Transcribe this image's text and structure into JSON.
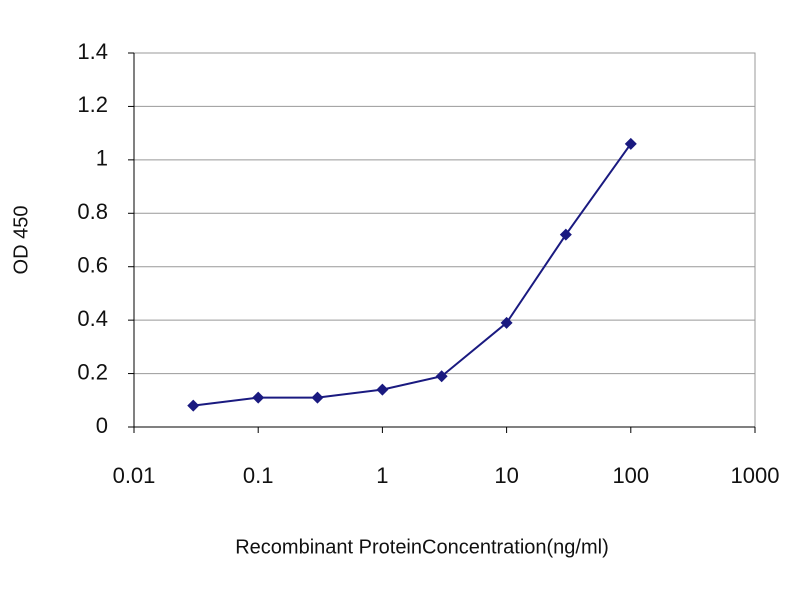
{
  "chart_data": {
    "type": "line",
    "xscale": "log",
    "x": [
      0.03,
      0.1,
      0.3,
      1,
      3,
      10,
      30,
      100
    ],
    "values": [
      0.08,
      0.11,
      0.11,
      0.14,
      0.19,
      0.39,
      0.72,
      1.06
    ],
    "color": "#1a1a80",
    "xlim": [
      0.01,
      1000
    ],
    "xticks": [
      0.01,
      0.1,
      1,
      10,
      100,
      1000
    ],
    "ylim": [
      0,
      1.4
    ],
    "yticks": [
      0,
      0.2,
      0.4,
      0.6,
      0.8,
      1,
      1.2,
      1.4
    ],
    "grid": true,
    "xlabel": "Recombinant ProteinConcentration(ng/ml)",
    "ylabel": "OD 450"
  }
}
